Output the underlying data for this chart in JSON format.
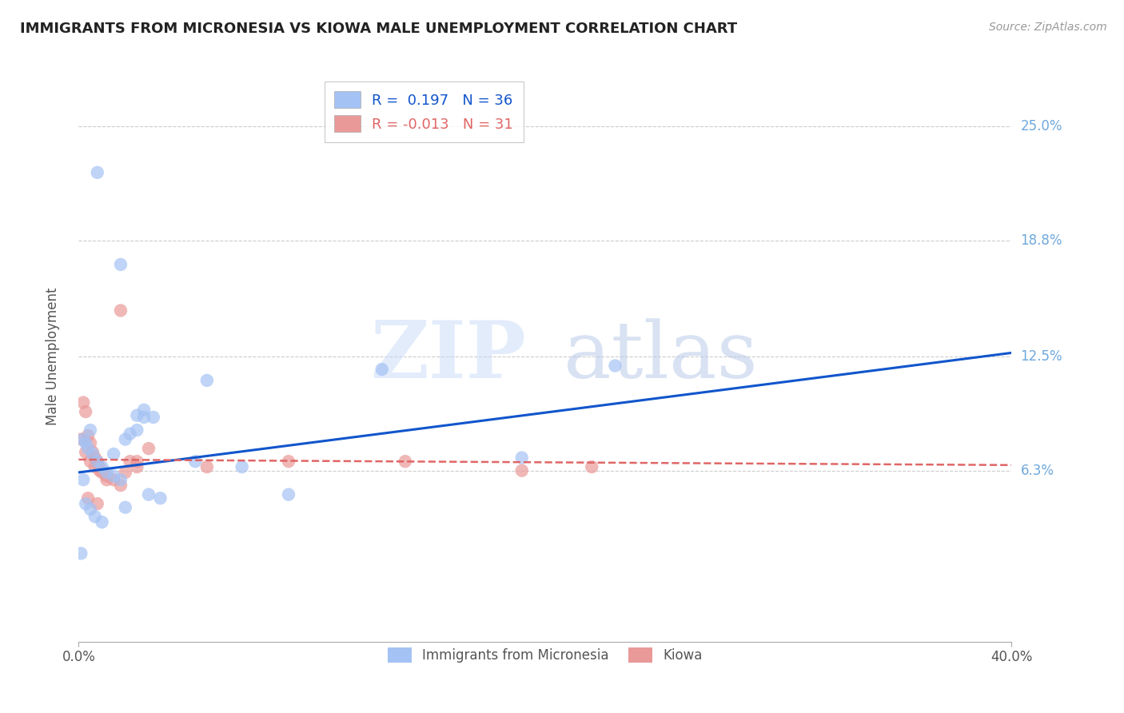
{
  "title": "IMMIGRANTS FROM MICRONESIA VS KIOWA MALE UNEMPLOYMENT CORRELATION CHART",
  "source": "Source: ZipAtlas.com",
  "ylabel": "Male Unemployment",
  "xlim": [
    0.0,
    0.4
  ],
  "ylim": [
    -0.03,
    0.28
  ],
  "yticks": [
    0.063,
    0.125,
    0.188,
    0.25
  ],
  "ytick_labels": [
    "6.3%",
    "12.5%",
    "18.8%",
    "25.0%"
  ],
  "xticks": [
    0.0,
    0.4
  ],
  "xtick_labels": [
    "0.0%",
    "40.0%"
  ],
  "blue_R": 0.197,
  "blue_N": 36,
  "pink_R": -0.013,
  "pink_N": 31,
  "blue_color": "#a4c2f4",
  "pink_color": "#ea9999",
  "blue_line_color": "#1155cc",
  "pink_line_color": "#e06666",
  "watermark_zip": "ZIP",
  "watermark_atlas": "atlas",
  "blue_points_x": [
    0.008,
    0.018,
    0.005,
    0.002,
    0.003,
    0.004,
    0.006,
    0.008,
    0.01,
    0.012,
    0.015,
    0.018,
    0.02,
    0.022,
    0.025,
    0.028,
    0.03,
    0.035,
    0.05,
    0.055,
    0.07,
    0.09,
    0.13,
    0.19,
    0.23,
    0.001,
    0.003,
    0.005,
    0.007,
    0.01,
    0.02,
    0.025,
    0.028,
    0.032,
    0.002,
    0.015
  ],
  "blue_points_y": [
    0.225,
    0.175,
    0.085,
    0.08,
    0.078,
    0.075,
    0.072,
    0.068,
    0.065,
    0.062,
    0.06,
    0.058,
    0.08,
    0.083,
    0.085,
    0.092,
    0.05,
    0.048,
    0.068,
    0.112,
    0.065,
    0.05,
    0.118,
    0.07,
    0.12,
    0.018,
    0.045,
    0.042,
    0.038,
    0.035,
    0.043,
    0.093,
    0.096,
    0.092,
    0.058,
    0.072
  ],
  "pink_points_x": [
    0.002,
    0.003,
    0.004,
    0.005,
    0.006,
    0.007,
    0.008,
    0.009,
    0.01,
    0.012,
    0.015,
    0.018,
    0.02,
    0.022,
    0.025,
    0.003,
    0.005,
    0.007,
    0.009,
    0.012,
    0.018,
    0.025,
    0.03,
    0.055,
    0.09,
    0.14,
    0.19,
    0.22,
    0.001,
    0.004,
    0.008
  ],
  "pink_points_y": [
    0.1,
    0.095,
    0.082,
    0.078,
    0.073,
    0.07,
    0.068,
    0.065,
    0.062,
    0.06,
    0.058,
    0.15,
    0.062,
    0.068,
    0.065,
    0.073,
    0.068,
    0.065,
    0.063,
    0.058,
    0.055,
    0.068,
    0.075,
    0.065,
    0.068,
    0.068,
    0.063,
    0.065,
    0.08,
    0.048,
    0.045
  ],
  "blue_line_x0": 0.0,
  "blue_line_y0": 0.062,
  "blue_line_x1": 0.4,
  "blue_line_y1": 0.127,
  "pink_line_x0": 0.0,
  "pink_line_y0": 0.069,
  "pink_line_x1": 0.4,
  "pink_line_y1": 0.066
}
